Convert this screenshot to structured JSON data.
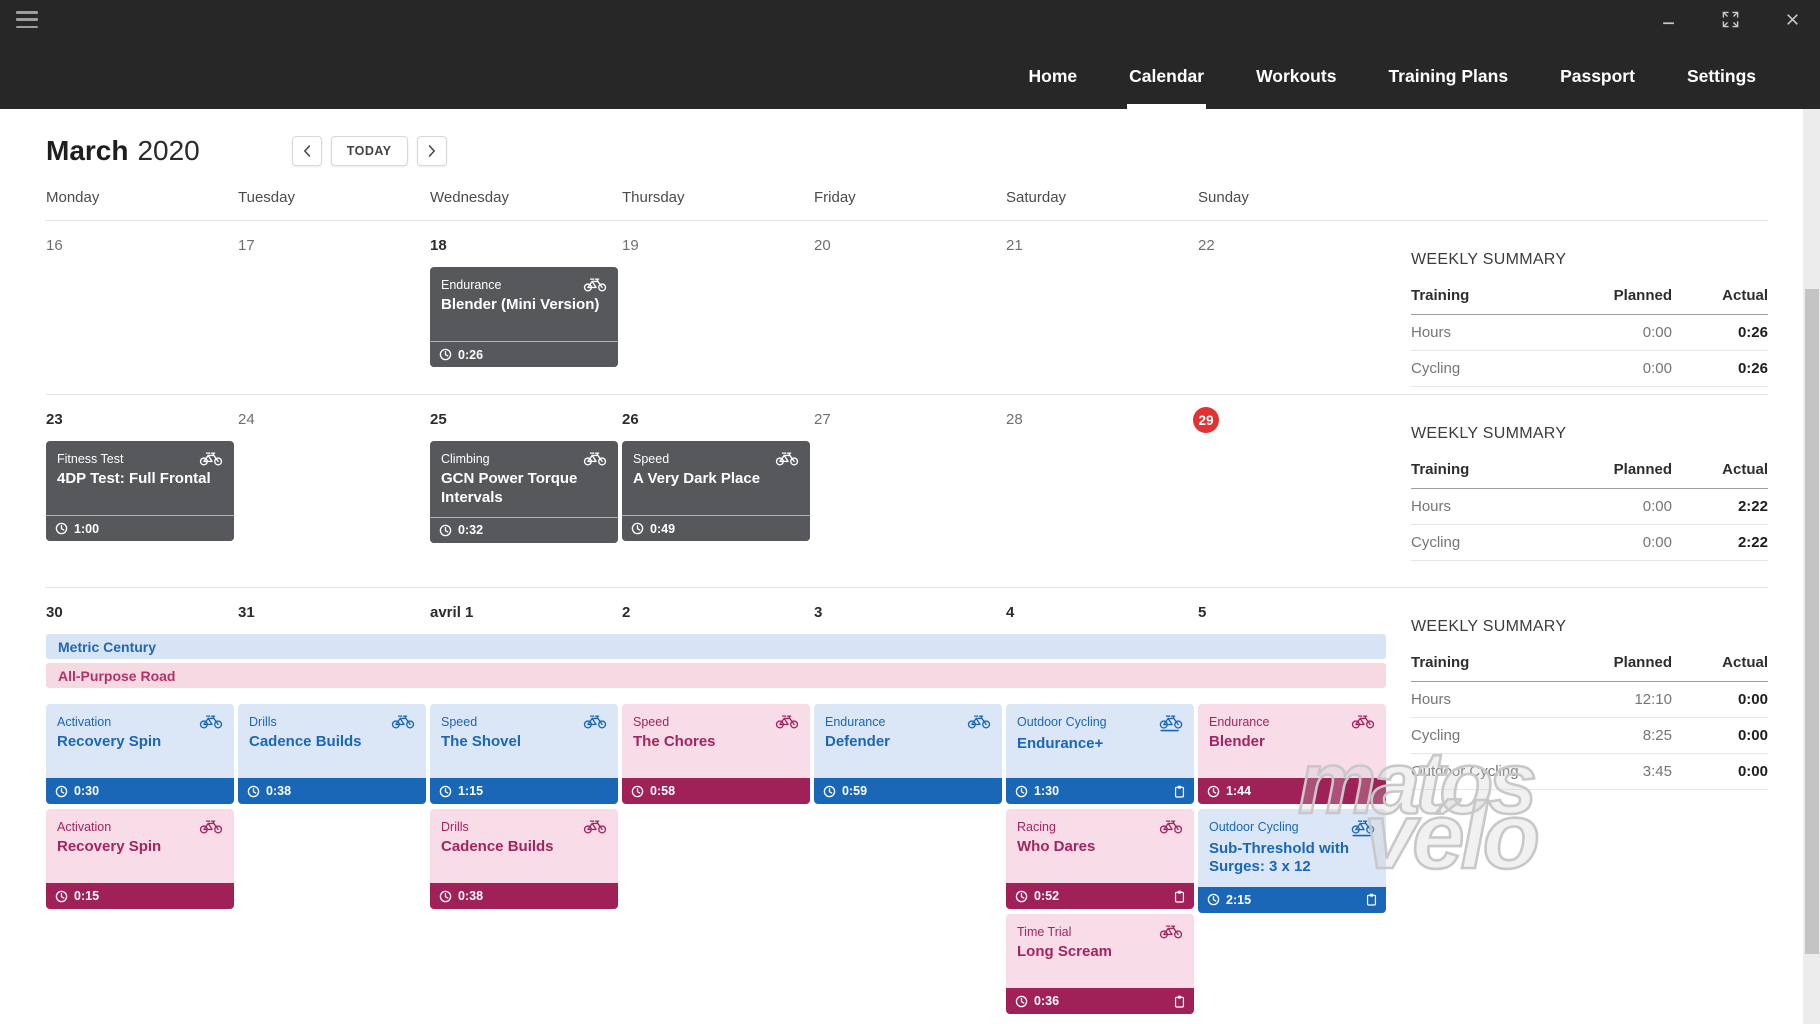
{
  "titlebar": {
    "hamburger_icon": "hamburger-menu-icon",
    "window_controls": [
      "minimize-icon",
      "maximize-icon",
      "close-icon"
    ]
  },
  "nav": {
    "items": [
      {
        "label": "Home",
        "active": false
      },
      {
        "label": "Calendar",
        "active": true
      },
      {
        "label": "Workouts",
        "active": false
      },
      {
        "label": "Training Plans",
        "active": false
      },
      {
        "label": "Passport",
        "active": false
      },
      {
        "label": "Settings",
        "active": false
      }
    ]
  },
  "header": {
    "month": "March",
    "year": "2020",
    "today_label": "TODAY"
  },
  "days_of_week": [
    "Monday",
    "Tuesday",
    "Wednesday",
    "Thursday",
    "Friday",
    "Saturday",
    "Sunday"
  ],
  "colors": {
    "topbar": "#272727",
    "planned_blue": "#1a67b7",
    "planned_blue_bg": "#dbe6f6",
    "completed_pink": "#a02058",
    "completed_pink_bg": "#f8dde8",
    "gray_card": "#57585b",
    "today_red": "#e23232"
  },
  "weeks": [
    {
      "days": [
        {
          "date": "16",
          "bold": false,
          "today": false,
          "cards": []
        },
        {
          "date": "17",
          "bold": false,
          "today": false,
          "cards": []
        },
        {
          "date": "18",
          "bold": true,
          "today": false,
          "cards": [
            {
              "category": "Endurance",
              "title": "Blender (Mini Version)",
              "duration": "0:26",
              "style": "gray",
              "icon": "bike",
              "clipboard": false
            }
          ]
        },
        {
          "date": "19",
          "bold": false,
          "today": false,
          "cards": []
        },
        {
          "date": "20",
          "bold": false,
          "today": false,
          "cards": []
        },
        {
          "date": "21",
          "bold": false,
          "today": false,
          "cards": []
        },
        {
          "date": "22",
          "bold": false,
          "today": false,
          "cards": []
        }
      ],
      "allday": [],
      "summary": {
        "title": "WEEKLY SUMMARY",
        "columns": [
          "Training",
          "Planned",
          "Actual"
        ],
        "rows": [
          [
            "Hours",
            "0:00",
            "0:26"
          ],
          [
            "Cycling",
            "0:00",
            "0:26"
          ]
        ]
      }
    },
    {
      "days": [
        {
          "date": "23",
          "bold": true,
          "today": false,
          "cards": [
            {
              "category": "Fitness Test",
              "title": "4DP Test: Full Frontal",
              "duration": "1:00",
              "style": "gray",
              "icon": "bike",
              "clipboard": false
            }
          ]
        },
        {
          "date": "24",
          "bold": false,
          "today": false,
          "cards": []
        },
        {
          "date": "25",
          "bold": true,
          "today": false,
          "cards": [
            {
              "category": "Climbing",
              "title": "GCN Power Torque Intervals",
              "duration": "0:32",
              "style": "gray",
              "icon": "bike",
              "clipboard": false
            }
          ]
        },
        {
          "date": "26",
          "bold": true,
          "today": false,
          "cards": [
            {
              "category": "Speed",
              "title": "A Very Dark Place",
              "duration": "0:49",
              "style": "gray",
              "icon": "bike",
              "clipboard": false
            }
          ]
        },
        {
          "date": "27",
          "bold": false,
          "today": false,
          "cards": []
        },
        {
          "date": "28",
          "bold": false,
          "today": false,
          "cards": []
        },
        {
          "date": "29",
          "bold": false,
          "today": true,
          "cards": []
        }
      ],
      "allday": [],
      "summary": {
        "title": "WEEKLY SUMMARY",
        "columns": [
          "Training",
          "Planned",
          "Actual"
        ],
        "rows": [
          [
            "Hours",
            "0:00",
            "2:22"
          ],
          [
            "Cycling",
            "0:00",
            "2:22"
          ]
        ]
      }
    },
    {
      "days": [
        {
          "date": "30",
          "bold": true,
          "today": false,
          "cards": [
            {
              "category": "Activation",
              "title": "Recovery Spin",
              "duration": "0:30",
              "style": "blue",
              "icon": "bike",
              "clipboard": false
            },
            {
              "category": "Activation",
              "title": "Recovery Spin",
              "duration": "0:15",
              "style": "pink",
              "icon": "bike",
              "clipboard": false
            }
          ]
        },
        {
          "date": "31",
          "bold": true,
          "today": false,
          "cards": [
            {
              "category": "Drills",
              "title": "Cadence Builds",
              "duration": "0:38",
              "style": "blue",
              "icon": "bike",
              "clipboard": false
            }
          ]
        },
        {
          "date": "avril 1",
          "bold": true,
          "today": false,
          "cards": [
            {
              "category": "Speed",
              "title": "The Shovel",
              "duration": "1:15",
              "style": "blue",
              "icon": "bike",
              "clipboard": false
            },
            {
              "category": "Drills",
              "title": "Cadence Builds",
              "duration": "0:38",
              "style": "pink",
              "icon": "bike",
              "clipboard": false
            }
          ]
        },
        {
          "date": "2",
          "bold": true,
          "today": false,
          "cards": [
            {
              "category": "Speed",
              "title": "The Chores",
              "duration": "0:58",
              "style": "pink",
              "icon": "bike",
              "clipboard": false
            }
          ]
        },
        {
          "date": "3",
          "bold": true,
          "today": false,
          "cards": [
            {
              "category": "Endurance",
              "title": "Defender",
              "duration": "0:59",
              "style": "blue",
              "icon": "bike",
              "clipboard": false
            }
          ]
        },
        {
          "date": "4",
          "bold": true,
          "today": false,
          "cards": [
            {
              "category": "Outdoor Cycling",
              "title": "Endurance+",
              "duration": "1:30",
              "style": "blue",
              "icon": "bike-outdoor",
              "clipboard": true
            },
            {
              "category": "Racing",
              "title": "Who Dares",
              "duration": "0:52",
              "style": "pink",
              "icon": "bike",
              "clipboard": true
            },
            {
              "category": "Time Trial",
              "title": "Long Scream",
              "duration": "0:36",
              "style": "pink",
              "icon": "bike",
              "clipboard": true
            }
          ]
        },
        {
          "date": "5",
          "bold": true,
          "today": false,
          "cards": [
            {
              "category": "Endurance",
              "title": "Blender",
              "duration": "1:44",
              "style": "pink",
              "icon": "bike",
              "clipboard": false
            },
            {
              "category": "Outdoor Cycling",
              "title": "Sub-Threshold with Surges: 3 x 12",
              "duration": "2:15",
              "style": "blue",
              "icon": "bike-outdoor",
              "clipboard": true
            }
          ]
        }
      ],
      "allday": [
        {
          "label": "Metric Century",
          "style": "blue"
        },
        {
          "label": "All-Purpose Road",
          "style": "pink"
        }
      ],
      "summary": {
        "title": "WEEKLY SUMMARY",
        "columns": [
          "Training",
          "Planned",
          "Actual"
        ],
        "rows": [
          [
            "Hours",
            "12:10",
            "0:00"
          ],
          [
            "Cycling",
            "8:25",
            "0:00"
          ],
          [
            "Outdoor Cycling",
            "3:45",
            "0:00"
          ]
        ]
      }
    }
  ],
  "watermark": {
    "line1": "matos",
    "line2": "vélo"
  }
}
